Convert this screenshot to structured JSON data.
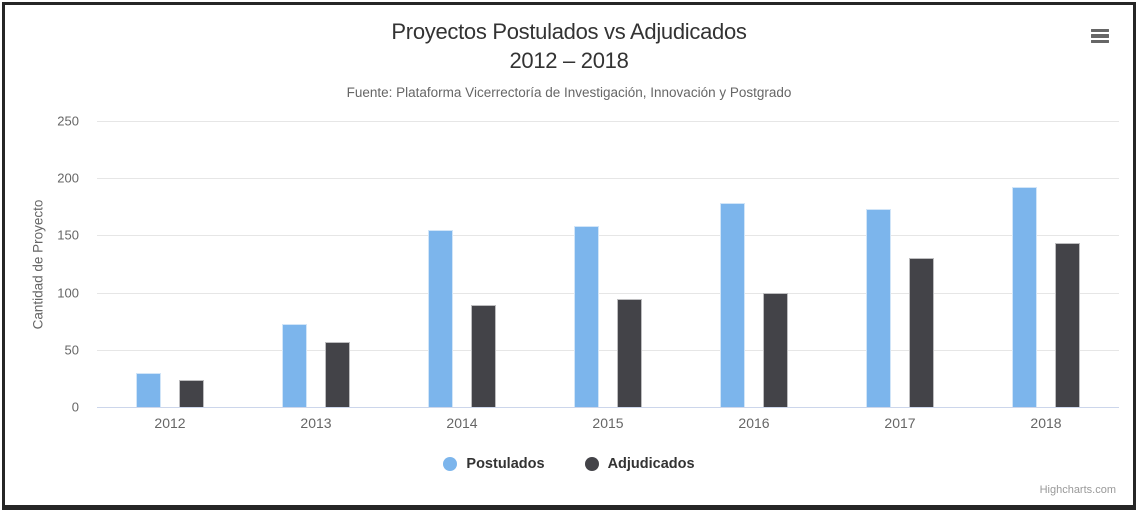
{
  "header": {
    "title_line1": "Proyectos Postulados vs Adjudicados",
    "title_line2": "2012 – 2018",
    "subtitle": "Fuente: Plataforma Vicerrectoría de Investigación, Innovación y Postgrado",
    "menu_icon": "hamburger-icon"
  },
  "credits": "Highcharts.com",
  "chart_data": {
    "type": "bar",
    "title": "Proyectos Postulados vs Adjudicados 2012 – 2018",
    "subtitle": "Fuente: Plataforma Vicerrectoría de Investigación, Innovación y Postgrado",
    "categories": [
      "2012",
      "2013",
      "2014",
      "2015",
      "2016",
      "2017",
      "2018"
    ],
    "series": [
      {
        "name": "Postulados",
        "color": "#7cb5ec",
        "values": [
          30,
          73,
          155,
          158,
          178,
          173,
          192
        ]
      },
      {
        "name": "Adjudicados",
        "color": "#434348",
        "values": [
          24,
          57,
          89,
          94,
          100,
          130,
          143
        ]
      }
    ],
    "xlabel": "",
    "ylabel": "Cantidad de Proyecto",
    "ylim": [
      0,
      250
    ],
    "yticks": [
      0,
      50,
      100,
      150,
      200,
      250
    ],
    "grid": true,
    "legend_position": "bottom",
    "colors": {
      "grid": "#e6e6e6",
      "axis_line": "#ccd6eb",
      "tick_label": "#666666",
      "title": "#333333",
      "subtitle": "#666666",
      "legend_text": "#333333",
      "credits": "#999999"
    }
  }
}
